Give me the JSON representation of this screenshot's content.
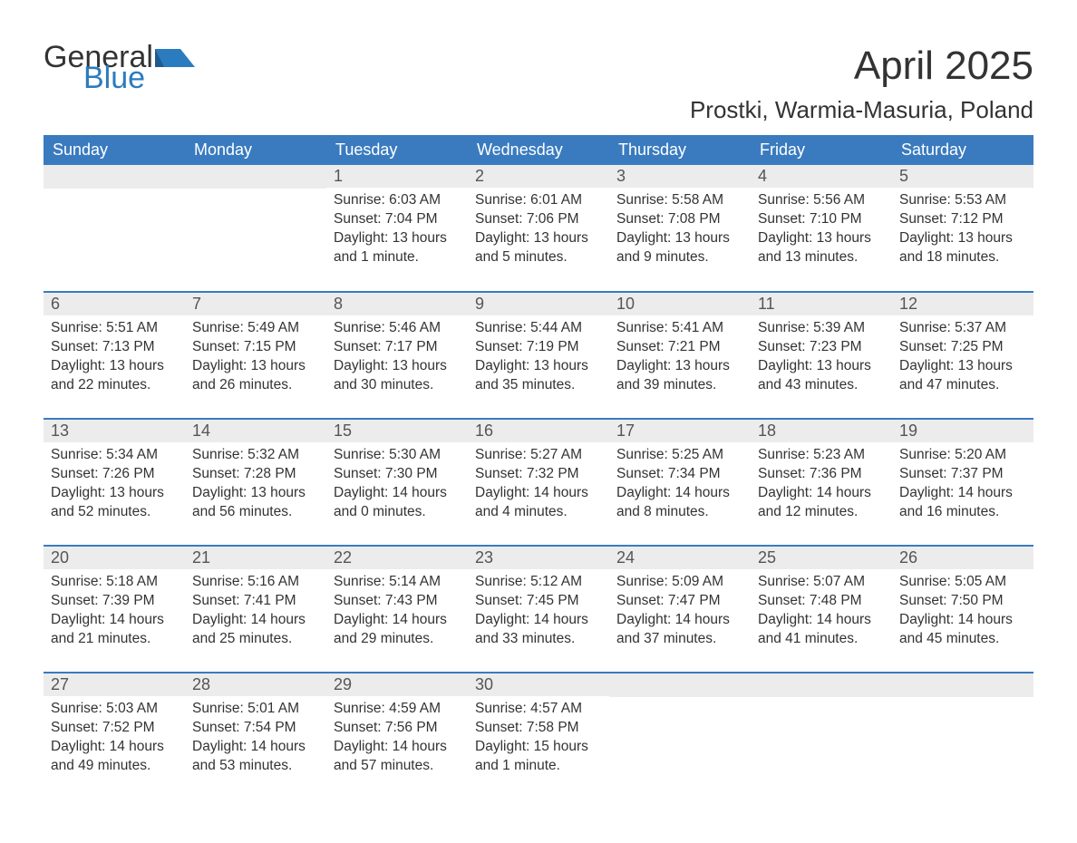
{
  "logo": {
    "word1": "General",
    "word2": "Blue",
    "icon_color": "#2b7bbf",
    "text1_color": "#333333",
    "text2_color": "#2b7bbf"
  },
  "title": "April 2025",
  "location": "Prostki, Warmia-Masuria, Poland",
  "colors": {
    "header_bg": "#3a7bbf",
    "header_text": "#ffffff",
    "daynum_bg": "#ececec",
    "body_text": "#333333",
    "rule": "#3a7bbf",
    "page_bg": "#ffffff"
  },
  "weekdays": [
    "Sunday",
    "Monday",
    "Tuesday",
    "Wednesday",
    "Thursday",
    "Friday",
    "Saturday"
  ],
  "weeks": [
    [
      {
        "day": null
      },
      {
        "day": null
      },
      {
        "day": 1,
        "sunrise": "6:03 AM",
        "sunset": "7:04 PM",
        "daylight": "13 hours and 1 minute."
      },
      {
        "day": 2,
        "sunrise": "6:01 AM",
        "sunset": "7:06 PM",
        "daylight": "13 hours and 5 minutes."
      },
      {
        "day": 3,
        "sunrise": "5:58 AM",
        "sunset": "7:08 PM",
        "daylight": "13 hours and 9 minutes."
      },
      {
        "day": 4,
        "sunrise": "5:56 AM",
        "sunset": "7:10 PM",
        "daylight": "13 hours and 13 minutes."
      },
      {
        "day": 5,
        "sunrise": "5:53 AM",
        "sunset": "7:12 PM",
        "daylight": "13 hours and 18 minutes."
      }
    ],
    [
      {
        "day": 6,
        "sunrise": "5:51 AM",
        "sunset": "7:13 PM",
        "daylight": "13 hours and 22 minutes."
      },
      {
        "day": 7,
        "sunrise": "5:49 AM",
        "sunset": "7:15 PM",
        "daylight": "13 hours and 26 minutes."
      },
      {
        "day": 8,
        "sunrise": "5:46 AM",
        "sunset": "7:17 PM",
        "daylight": "13 hours and 30 minutes."
      },
      {
        "day": 9,
        "sunrise": "5:44 AM",
        "sunset": "7:19 PM",
        "daylight": "13 hours and 35 minutes."
      },
      {
        "day": 10,
        "sunrise": "5:41 AM",
        "sunset": "7:21 PM",
        "daylight": "13 hours and 39 minutes."
      },
      {
        "day": 11,
        "sunrise": "5:39 AM",
        "sunset": "7:23 PM",
        "daylight": "13 hours and 43 minutes."
      },
      {
        "day": 12,
        "sunrise": "5:37 AM",
        "sunset": "7:25 PM",
        "daylight": "13 hours and 47 minutes."
      }
    ],
    [
      {
        "day": 13,
        "sunrise": "5:34 AM",
        "sunset": "7:26 PM",
        "daylight": "13 hours and 52 minutes."
      },
      {
        "day": 14,
        "sunrise": "5:32 AM",
        "sunset": "7:28 PM",
        "daylight": "13 hours and 56 minutes."
      },
      {
        "day": 15,
        "sunrise": "5:30 AM",
        "sunset": "7:30 PM",
        "daylight": "14 hours and 0 minutes."
      },
      {
        "day": 16,
        "sunrise": "5:27 AM",
        "sunset": "7:32 PM",
        "daylight": "14 hours and 4 minutes."
      },
      {
        "day": 17,
        "sunrise": "5:25 AM",
        "sunset": "7:34 PM",
        "daylight": "14 hours and 8 minutes."
      },
      {
        "day": 18,
        "sunrise": "5:23 AM",
        "sunset": "7:36 PM",
        "daylight": "14 hours and 12 minutes."
      },
      {
        "day": 19,
        "sunrise": "5:20 AM",
        "sunset": "7:37 PM",
        "daylight": "14 hours and 16 minutes."
      }
    ],
    [
      {
        "day": 20,
        "sunrise": "5:18 AM",
        "sunset": "7:39 PM",
        "daylight": "14 hours and 21 minutes."
      },
      {
        "day": 21,
        "sunrise": "5:16 AM",
        "sunset": "7:41 PM",
        "daylight": "14 hours and 25 minutes."
      },
      {
        "day": 22,
        "sunrise": "5:14 AM",
        "sunset": "7:43 PM",
        "daylight": "14 hours and 29 minutes."
      },
      {
        "day": 23,
        "sunrise": "5:12 AM",
        "sunset": "7:45 PM",
        "daylight": "14 hours and 33 minutes."
      },
      {
        "day": 24,
        "sunrise": "5:09 AM",
        "sunset": "7:47 PM",
        "daylight": "14 hours and 37 minutes."
      },
      {
        "day": 25,
        "sunrise": "5:07 AM",
        "sunset": "7:48 PM",
        "daylight": "14 hours and 41 minutes."
      },
      {
        "day": 26,
        "sunrise": "5:05 AM",
        "sunset": "7:50 PM",
        "daylight": "14 hours and 45 minutes."
      }
    ],
    [
      {
        "day": 27,
        "sunrise": "5:03 AM",
        "sunset": "7:52 PM",
        "daylight": "14 hours and 49 minutes."
      },
      {
        "day": 28,
        "sunrise": "5:01 AM",
        "sunset": "7:54 PM",
        "daylight": "14 hours and 53 minutes."
      },
      {
        "day": 29,
        "sunrise": "4:59 AM",
        "sunset": "7:56 PM",
        "daylight": "14 hours and 57 minutes."
      },
      {
        "day": 30,
        "sunrise": "4:57 AM",
        "sunset": "7:58 PM",
        "daylight": "15 hours and 1 minute."
      },
      {
        "day": null
      },
      {
        "day": null
      },
      {
        "day": null
      }
    ]
  ],
  "labels": {
    "sunrise": "Sunrise:",
    "sunset": "Sunset:",
    "daylight": "Daylight:"
  }
}
